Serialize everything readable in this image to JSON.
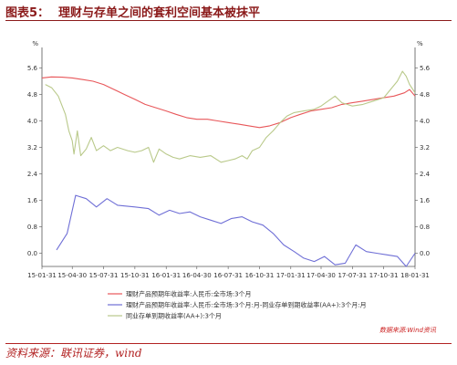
{
  "header": {
    "label": "图表5：",
    "title": "理财与存单之间的套利空间基本被抹平"
  },
  "source": "资料来源：联讯证券，wind",
  "chart_data": {
    "type": "line",
    "unit_left": "%",
    "unit_right": "%",
    "credit": "数据来源:Wind资讯",
    "ylim": [
      -0.4,
      6.0
    ],
    "yticks": [
      "5.6",
      "4.8",
      "4.0",
      "3.2",
      "2.4",
      "1.6",
      "0.8",
      "0.0"
    ],
    "yticks_values": [
      5.6,
      4.8,
      4.0,
      3.2,
      2.4,
      1.6,
      0.8,
      0.0
    ],
    "xlim": [
      "2015-01-31",
      "2018-01-31"
    ],
    "xticks": [
      "15-01-31",
      "15-04-30",
      "15-07-31",
      "15-10-31",
      "16-01-31",
      "16-04-30",
      "16-07-31",
      "16-10-31",
      "17-01-31",
      "17-04-30",
      "17-07-31",
      "17-10-31",
      "18-01-31"
    ],
    "xticks_dates": [
      "2015-01-31",
      "2015-04-30",
      "2015-07-31",
      "2015-10-31",
      "2016-01-31",
      "2016-04-30",
      "2016-07-31",
      "2016-10-31",
      "2017-01-31",
      "2017-04-30",
      "2017-07-31",
      "2017-10-31",
      "2018-01-31"
    ],
    "grid": false,
    "legend_placement": "bottom",
    "series": [
      {
        "name": "理财产品预期年收益率:人民币:全市场:3个月",
        "color": "#e8575a",
        "points": [
          [
            "2015-01-31",
            5.3
          ],
          [
            "2015-02-28",
            5.33
          ],
          [
            "2015-03-31",
            5.32
          ],
          [
            "2015-04-30",
            5.3
          ],
          [
            "2015-05-31",
            5.25
          ],
          [
            "2015-06-30",
            5.2
          ],
          [
            "2015-07-31",
            5.1
          ],
          [
            "2015-08-31",
            4.95
          ],
          [
            "2015-09-30",
            4.8
          ],
          [
            "2015-10-31",
            4.65
          ],
          [
            "2015-11-30",
            4.5
          ],
          [
            "2015-12-31",
            4.4
          ],
          [
            "2016-01-31",
            4.3
          ],
          [
            "2016-02-29",
            4.2
          ],
          [
            "2016-03-31",
            4.1
          ],
          [
            "2016-04-30",
            4.05
          ],
          [
            "2016-05-31",
            4.05
          ],
          [
            "2016-06-30",
            4.0
          ],
          [
            "2016-07-31",
            3.95
          ],
          [
            "2016-08-31",
            3.9
          ],
          [
            "2016-09-30",
            3.85
          ],
          [
            "2016-10-31",
            3.8
          ],
          [
            "2016-11-30",
            3.85
          ],
          [
            "2016-12-31",
            3.95
          ],
          [
            "2017-01-31",
            4.1
          ],
          [
            "2017-02-28",
            4.2
          ],
          [
            "2017-03-31",
            4.3
          ],
          [
            "2017-04-30",
            4.35
          ],
          [
            "2017-05-31",
            4.4
          ],
          [
            "2017-06-30",
            4.5
          ],
          [
            "2017-07-31",
            4.55
          ],
          [
            "2017-08-31",
            4.6
          ],
          [
            "2017-09-30",
            4.65
          ],
          [
            "2017-10-31",
            4.7
          ],
          [
            "2017-11-30",
            4.75
          ],
          [
            "2017-12-31",
            4.85
          ],
          [
            "2018-01-15",
            4.95
          ],
          [
            "2018-01-31",
            4.75
          ]
        ]
      },
      {
        "name": "理财产品预期年收益率:人民币:全市场:3个月:月-同业存单到期收益率(AA+):3个月:月",
        "color": "#6f6fd6",
        "points": [
          [
            "2015-03-15",
            0.1
          ],
          [
            "2015-04-15",
            0.6
          ],
          [
            "2015-05-10",
            1.75
          ],
          [
            "2015-06-10",
            1.65
          ],
          [
            "2015-07-10",
            1.4
          ],
          [
            "2015-08-10",
            1.65
          ],
          [
            "2015-09-10",
            1.45
          ],
          [
            "2015-10-31",
            1.4
          ],
          [
            "2015-12-10",
            1.35
          ],
          [
            "2016-01-10",
            1.15
          ],
          [
            "2016-02-10",
            1.3
          ],
          [
            "2016-03-10",
            1.2
          ],
          [
            "2016-04-10",
            1.25
          ],
          [
            "2016-05-10",
            1.1
          ],
          [
            "2016-06-10",
            1.0
          ],
          [
            "2016-07-10",
            0.9
          ],
          [
            "2016-08-10",
            1.05
          ],
          [
            "2016-09-10",
            1.1
          ],
          [
            "2016-10-10",
            0.95
          ],
          [
            "2016-11-10",
            0.85
          ],
          [
            "2016-12-10",
            0.6
          ],
          [
            "2017-01-10",
            0.25
          ],
          [
            "2017-02-10",
            0.05
          ],
          [
            "2017-03-10",
            -0.15
          ],
          [
            "2017-04-10",
            -0.25
          ],
          [
            "2017-05-10",
            -0.1
          ],
          [
            "2017-06-10",
            -0.35
          ],
          [
            "2017-07-10",
            -0.3
          ],
          [
            "2017-08-10",
            0.25
          ],
          [
            "2017-09-10",
            0.05
          ],
          [
            "2017-10-10",
            0.0
          ],
          [
            "2017-11-10",
            -0.05
          ],
          [
            "2017-12-10",
            -0.1
          ],
          [
            "2018-01-05",
            -0.4
          ],
          [
            "2018-01-31",
            0.0
          ]
        ]
      },
      {
        "name": "同业存单到期收益率(AA+):3个月",
        "color": "#b9c98a",
        "points": [
          [
            "2015-02-10",
            5.1
          ],
          [
            "2015-03-01",
            5.0
          ],
          [
            "2015-03-20",
            4.75
          ],
          [
            "2015-04-10",
            4.2
          ],
          [
            "2015-04-20",
            3.7
          ],
          [
            "2015-04-30",
            3.4
          ],
          [
            "2015-05-05",
            3.0
          ],
          [
            "2015-05-15",
            3.7
          ],
          [
            "2015-05-25",
            2.95
          ],
          [
            "2015-06-10",
            3.15
          ],
          [
            "2015-06-25",
            3.5
          ],
          [
            "2015-07-10",
            3.1
          ],
          [
            "2015-07-31",
            3.25
          ],
          [
            "2015-08-20",
            3.1
          ],
          [
            "2015-09-10",
            3.2
          ],
          [
            "2015-10-10",
            3.1
          ],
          [
            "2015-10-31",
            3.05
          ],
          [
            "2015-11-20",
            3.1
          ],
          [
            "2015-12-10",
            3.2
          ],
          [
            "2015-12-25",
            2.75
          ],
          [
            "2016-01-10",
            3.15
          ],
          [
            "2016-01-31",
            3.0
          ],
          [
            "2016-02-20",
            2.9
          ],
          [
            "2016-03-10",
            2.85
          ],
          [
            "2016-04-10",
            2.95
          ],
          [
            "2016-05-10",
            2.9
          ],
          [
            "2016-06-10",
            2.95
          ],
          [
            "2016-07-10",
            2.75
          ],
          [
            "2016-07-31",
            2.8
          ],
          [
            "2016-08-20",
            2.85
          ],
          [
            "2016-09-10",
            2.95
          ],
          [
            "2016-09-25",
            2.85
          ],
          [
            "2016-10-10",
            3.1
          ],
          [
            "2016-10-31",
            3.2
          ],
          [
            "2016-11-20",
            3.5
          ],
          [
            "2016-12-10",
            3.7
          ],
          [
            "2016-12-31",
            3.95
          ],
          [
            "2017-01-20",
            4.15
          ],
          [
            "2017-02-10",
            4.25
          ],
          [
            "2017-03-10",
            4.3
          ],
          [
            "2017-04-10",
            4.35
          ],
          [
            "2017-04-30",
            4.45
          ],
          [
            "2017-05-20",
            4.6
          ],
          [
            "2017-06-10",
            4.75
          ],
          [
            "2017-06-30",
            4.55
          ],
          [
            "2017-07-31",
            4.45
          ],
          [
            "2017-08-31",
            4.5
          ],
          [
            "2017-09-30",
            4.6
          ],
          [
            "2017-10-31",
            4.7
          ],
          [
            "2017-11-20",
            4.95
          ],
          [
            "2017-12-10",
            5.2
          ],
          [
            "2017-12-25",
            5.5
          ],
          [
            "2018-01-05",
            5.35
          ],
          [
            "2018-01-15",
            5.1
          ],
          [
            "2018-01-31",
            4.85
          ]
        ]
      }
    ]
  }
}
